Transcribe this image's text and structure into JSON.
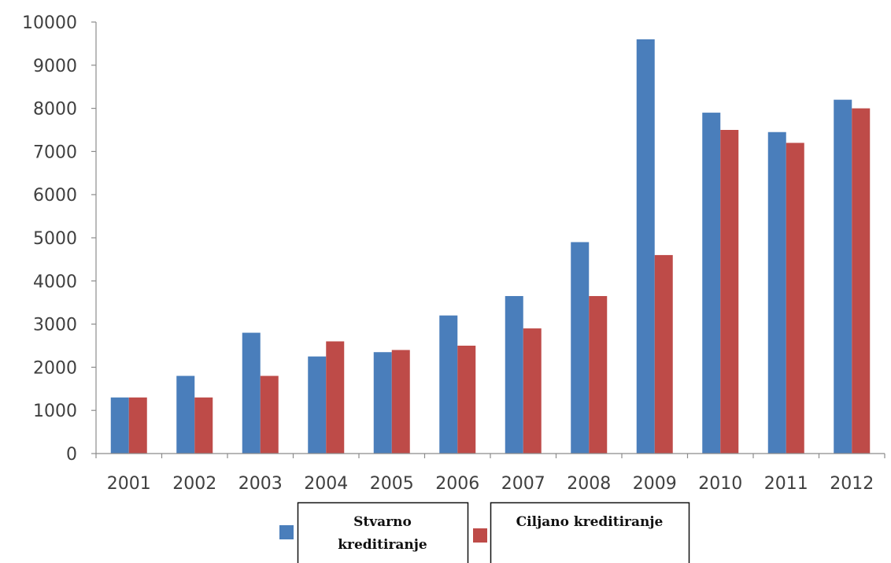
{
  "chart_data": {
    "type": "bar",
    "categories": [
      "2001",
      "2002",
      "2003",
      "2004",
      "2005",
      "2006",
      "2007",
      "2008",
      "2009",
      "2010",
      "2011",
      "2012"
    ],
    "series": [
      {
        "name": "Stvarno kreditiranje",
        "name_lines": [
          "Stvarno",
          "kreditiranje"
        ],
        "color": "#4A7EBB",
        "values": [
          1300,
          1800,
          2800,
          2250,
          2350,
          3200,
          3650,
          4900,
          9600,
          7900,
          7450,
          8200
        ]
      },
      {
        "name": "Ciljano kreditiranje",
        "name_lines": [
          "Ciljano kreditiranje"
        ],
        "color": "#BE4B48",
        "values": [
          1300,
          1300,
          1800,
          2600,
          2400,
          2500,
          2900,
          3650,
          4600,
          7500,
          7200,
          8000
        ]
      }
    ],
    "y_ticks": [
      "0",
      "1000",
      "2000",
      "3000",
      "4000",
      "5000",
      "6000",
      "7000",
      "8000",
      "9000",
      "10000"
    ],
    "ylim": [
      0,
      10000
    ],
    "title": "",
    "xlabel": "",
    "ylabel": "",
    "grid": false,
    "legend_position": "bottom"
  }
}
